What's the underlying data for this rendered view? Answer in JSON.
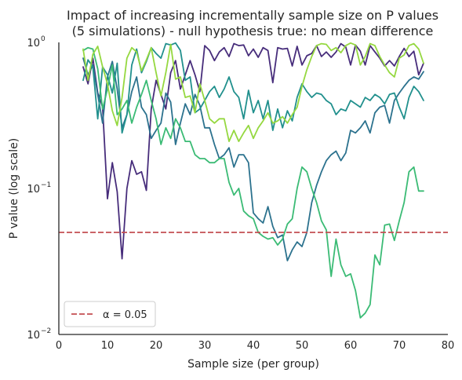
{
  "chart_data": {
    "type": "line",
    "title_line1": "Impact of increasing incrementally sample size on P values",
    "title_line2": "(5 simulations) - null hypothesis true: no mean difference",
    "xlabel": "Sample size (per group)",
    "ylabel": "P value (log scale)",
    "xlim": [
      0,
      80
    ],
    "ylim": [
      0.01,
      1
    ],
    "yscale": "log",
    "grid": false,
    "legend_position": "lower-left",
    "x_ticks": [
      {
        "value": 0,
        "label": "0"
      },
      {
        "value": 10,
        "label": "10"
      },
      {
        "value": 20,
        "label": "20"
      },
      {
        "value": 30,
        "label": "30"
      },
      {
        "value": 40,
        "label": "40"
      },
      {
        "value": 50,
        "label": "50"
      },
      {
        "value": 60,
        "label": "60"
      },
      {
        "value": 70,
        "label": "70"
      },
      {
        "value": 80,
        "label": "80"
      }
    ],
    "y_ticks": [
      {
        "value": 0.01,
        "base": "10",
        "exp": "−2"
      },
      {
        "value": 0.1,
        "base": "10",
        "exp": "−1"
      },
      {
        "value": 1,
        "base": "10",
        "exp": "0"
      }
    ],
    "alpha_line": {
      "value": 0.05,
      "color": "#c44e52",
      "legend_label": "α = 0.05"
    },
    "x": [
      5,
      6,
      7,
      8,
      9,
      10,
      11,
      12,
      13,
      14,
      15,
      16,
      17,
      18,
      19,
      20,
      21,
      22,
      23,
      24,
      25,
      26,
      27,
      28,
      29,
      30,
      31,
      32,
      33,
      34,
      35,
      36,
      37,
      38,
      39,
      40,
      41,
      42,
      43,
      44,
      45,
      46,
      47,
      48,
      49,
      50,
      51,
      52,
      53,
      54,
      55,
      56,
      57,
      58,
      59,
      60,
      61,
      62,
      63,
      64,
      65,
      66,
      67,
      68,
      69,
      70,
      71,
      72,
      73,
      74,
      75
    ],
    "series": [
      {
        "color": "#472d7b",
        "values": [
          0.68,
          0.52,
          0.78,
          0.45,
          0.36,
          0.085,
          0.15,
          0.095,
          0.033,
          0.1,
          0.155,
          0.125,
          0.13,
          0.097,
          0.35,
          0.55,
          0.44,
          0.35,
          0.62,
          0.75,
          0.48,
          0.6,
          0.75,
          0.6,
          0.46,
          0.95,
          0.88,
          0.75,
          0.86,
          0.92,
          0.8,
          0.98,
          0.95,
          0.96,
          0.81,
          0.9,
          0.79,
          0.92,
          0.88,
          0.53,
          0.92,
          0.9,
          0.91,
          0.69,
          0.94,
          0.7,
          0.81,
          0.84,
          0.95,
          0.8,
          0.86,
          0.79,
          0.86,
          0.98,
          0.93,
          0.7,
          0.96,
          0.87,
          0.7,
          0.95,
          0.86,
          0.78,
          0.69,
          0.75,
          0.69,
          0.8,
          0.91,
          0.8,
          0.87,
          0.6,
          0.72
        ]
      },
      {
        "color": "#2c728e",
        "values": [
          0.78,
          0.6,
          0.7,
          0.44,
          0.28,
          0.58,
          0.74,
          0.48,
          0.26,
          0.32,
          0.46,
          0.58,
          0.36,
          0.32,
          0.22,
          0.25,
          0.28,
          0.45,
          0.39,
          0.2,
          0.28,
          0.38,
          0.32,
          0.44,
          0.37,
          0.26,
          0.26,
          0.2,
          0.16,
          0.17,
          0.19,
          0.14,
          0.17,
          0.17,
          0.15,
          0.068,
          0.062,
          0.058,
          0.075,
          0.055,
          0.046,
          0.048,
          0.032,
          0.038,
          0.043,
          0.04,
          0.05,
          0.08,
          0.105,
          0.13,
          0.155,
          0.17,
          0.18,
          0.155,
          0.175,
          0.25,
          0.24,
          0.26,
          0.29,
          0.24,
          0.33,
          0.36,
          0.37,
          0.28,
          0.4,
          0.45,
          0.5,
          0.55,
          0.58,
          0.56,
          0.63
        ]
      },
      {
        "color": "#21908d",
        "values": [
          0.55,
          0.76,
          0.68,
          0.3,
          0.68,
          0.6,
          0.45,
          0.72,
          0.24,
          0.32,
          0.7,
          0.9,
          0.62,
          0.74,
          0.92,
          0.84,
          0.78,
          0.98,
          0.96,
          0.99,
          0.88,
          0.55,
          0.58,
          0.33,
          0.35,
          0.4,
          0.46,
          0.5,
          0.42,
          0.48,
          0.58,
          0.46,
          0.42,
          0.3,
          0.47,
          0.33,
          0.4,
          0.3,
          0.4,
          0.25,
          0.35,
          0.26,
          0.34,
          0.29,
          0.42,
          0.52,
          0.46,
          0.42,
          0.45,
          0.44,
          0.4,
          0.38,
          0.32,
          0.35,
          0.34,
          0.4,
          0.38,
          0.36,
          0.42,
          0.4,
          0.44,
          0.42,
          0.38,
          0.44,
          0.45,
          0.36,
          0.3,
          0.42,
          0.5,
          0.46,
          0.4
        ]
      },
      {
        "color": "#3bbb75",
        "values": [
          0.88,
          0.92,
          0.9,
          0.66,
          0.35,
          0.48,
          0.7,
          0.32,
          0.35,
          0.4,
          0.28,
          0.36,
          0.44,
          0.55,
          0.4,
          0.3,
          0.2,
          0.26,
          0.22,
          0.3,
          0.26,
          0.21,
          0.21,
          0.17,
          0.16,
          0.16,
          0.15,
          0.15,
          0.16,
          0.16,
          0.11,
          0.09,
          0.1,
          0.07,
          0.065,
          0.062,
          0.05,
          0.047,
          0.045,
          0.046,
          0.041,
          0.045,
          0.057,
          0.062,
          0.1,
          0.14,
          0.13,
          0.1,
          0.08,
          0.06,
          0.052,
          0.025,
          0.045,
          0.03,
          0.025,
          0.026,
          0.02,
          0.013,
          0.014,
          0.016,
          0.035,
          0.03,
          0.056,
          0.057,
          0.044,
          0.06,
          0.08,
          0.13,
          0.14,
          0.096,
          0.096
        ]
      },
      {
        "color": "#95d840",
        "values": [
          0.9,
          0.55,
          0.83,
          0.94,
          0.68,
          0.52,
          0.34,
          0.27,
          0.42,
          0.78,
          0.92,
          0.86,
          0.64,
          0.76,
          0.92,
          0.62,
          0.43,
          0.62,
          0.97,
          0.56,
          0.58,
          0.42,
          0.43,
          0.33,
          0.52,
          0.4,
          0.3,
          0.28,
          0.3,
          0.3,
          0.21,
          0.25,
          0.21,
          0.24,
          0.27,
          0.22,
          0.26,
          0.29,
          0.33,
          0.28,
          0.29,
          0.31,
          0.28,
          0.32,
          0.36,
          0.5,
          0.65,
          0.8,
          0.95,
          0.98,
          0.97,
          0.88,
          0.92,
          0.85,
          0.95,
          0.99,
          0.96,
          0.7,
          0.8,
          0.98,
          0.95,
          0.8,
          0.7,
          0.62,
          0.58,
          0.78,
          0.82,
          0.95,
          0.98,
          0.9,
          0.72
        ]
      }
    ]
  }
}
